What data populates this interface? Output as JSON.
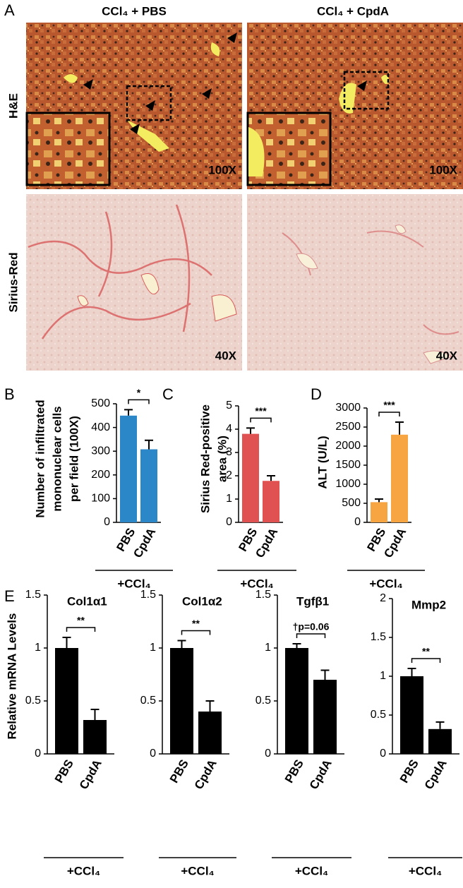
{
  "panel_a": {
    "label": "A",
    "columns": [
      "CCl₄ + PBS",
      "CCl₄ + CpdA"
    ],
    "rows": [
      "H&E",
      "Sirius-Red"
    ],
    "magnifications": [
      [
        "100X",
        "100X"
      ],
      [
        "40X",
        "40X"
      ]
    ]
  },
  "panel_e": {
    "label": "E",
    "ylabel": "Relative mRNA Levels"
  },
  "chart_data": [
    {
      "type": "bar",
      "panel": "B",
      "ylabel": [
        "Number of infiltrated",
        "mononuclear cells",
        "per field (100X)"
      ],
      "categories": [
        "PBS",
        "CpdA"
      ],
      "values": [
        450,
        308
      ],
      "errors": [
        25,
        38
      ],
      "color": "#2b87c8",
      "ylim": [
        0,
        500
      ],
      "yticks": [
        0,
        100,
        200,
        300,
        400,
        500
      ],
      "significance": "*",
      "group_label": "+CCl₄"
    },
    {
      "type": "bar",
      "panel": "C",
      "ylabel": [
        "Sirius Red-positive",
        "area (%)"
      ],
      "categories": [
        "PBS",
        "CpdA"
      ],
      "values": [
        3.8,
        1.78
      ],
      "errors": [
        0.25,
        0.22
      ],
      "color": "#e05252",
      "ylim": [
        0,
        5
      ],
      "yticks": [
        0,
        1,
        2,
        3,
        4,
        5
      ],
      "significance": "***",
      "group_label": "+CCl₄"
    },
    {
      "type": "bar",
      "panel": "D",
      "ylabel": [
        "ALT (U/L)"
      ],
      "categories": [
        "PBS",
        "CpdA"
      ],
      "values": [
        530,
        2300
      ],
      "errors": [
        80,
        330
      ],
      "color": "#f7a443",
      "ylim": [
        0,
        3000
      ],
      "yticks": [
        0,
        500,
        1000,
        1500,
        2000,
        2500,
        3000
      ],
      "significance": "***",
      "group_label": "+CCl₄"
    },
    {
      "type": "bar",
      "title": "Col1α1",
      "categories": [
        "PBS",
        "CpdA"
      ],
      "values": [
        1,
        0.32
      ],
      "errors": [
        0.1,
        0.1
      ],
      "color": "#000000",
      "ylim": [
        0,
        1.5
      ],
      "yticks": [
        0,
        0.5,
        1,
        1.5
      ],
      "significance": "**",
      "group_label": "+CCl₄"
    },
    {
      "type": "bar",
      "title": "Col1α2",
      "categories": [
        "PBS",
        "CpdA"
      ],
      "values": [
        1,
        0.4
      ],
      "errors": [
        0.07,
        0.1
      ],
      "color": "#000000",
      "ylim": [
        0,
        1.5
      ],
      "yticks": [
        0,
        0.5,
        1,
        1.5
      ],
      "significance": "**",
      "group_label": "+CCl₄"
    },
    {
      "type": "bar",
      "title": "Tgfβ1",
      "categories": [
        "PBS",
        "CpdA"
      ],
      "values": [
        1,
        0.7
      ],
      "errors": [
        0.04,
        0.09
      ],
      "color": "#000000",
      "ylim": [
        0,
        1.5
      ],
      "yticks": [
        0,
        0.5,
        1,
        1.5
      ],
      "significance": "†p=0.06",
      "group_label": "+CCl₄"
    },
    {
      "type": "bar",
      "title": "Mmp2",
      "categories": [
        "PBS",
        "CpdA"
      ],
      "values": [
        1,
        0.32
      ],
      "errors": [
        0.1,
        0.09
      ],
      "color": "#000000",
      "ylim": [
        0,
        2
      ],
      "yticks": [
        0,
        0.5,
        1,
        1.5,
        2
      ],
      "significance": "**",
      "group_label": "+CCl₄"
    }
  ]
}
